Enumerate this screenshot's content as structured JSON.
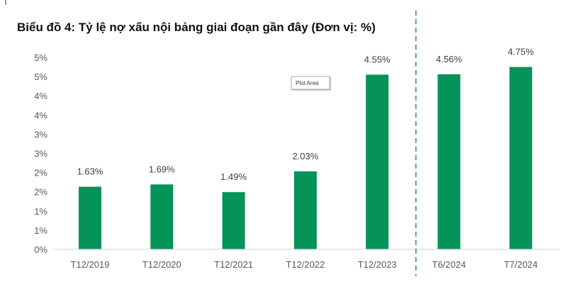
{
  "chart_data": {
    "type": "bar",
    "title": "Biểu đồ 4: Tỷ lệ nợ xấu nội bảng giai đoạn gần đây (Đơn vị: %)",
    "categories": [
      "T12/2019",
      "T12/2020",
      "T12/2021",
      "T12/2022",
      "T12/2023",
      "T6/2024",
      "T7/2024"
    ],
    "values": [
      1.63,
      1.69,
      1.49,
      2.03,
      4.55,
      4.56,
      4.75
    ],
    "data_labels": [
      "1.63%",
      "1.69%",
      "1.49%",
      "2.03%",
      "4.55%",
      "4.56%",
      "4.75%"
    ],
    "ylim": [
      0,
      5
    ],
    "y_ticks": [
      0,
      0.5,
      1,
      1.5,
      2,
      2.5,
      3,
      3.5,
      4,
      4.5,
      5
    ],
    "y_tick_labels": [
      "0%",
      "1%",
      "1%",
      "2%",
      "2%",
      "3%",
      "3%",
      "4%",
      "4%",
      "5%",
      "5%"
    ],
    "xlabel": "",
    "ylabel": "",
    "grid": false,
    "legend": "none",
    "bar_color": "#05935a",
    "divider": {
      "between": [
        "T12/2023",
        "T6/2024"
      ],
      "style": "dashed",
      "color": "#2e8b57"
    }
  },
  "tooltip": "Plot Area"
}
